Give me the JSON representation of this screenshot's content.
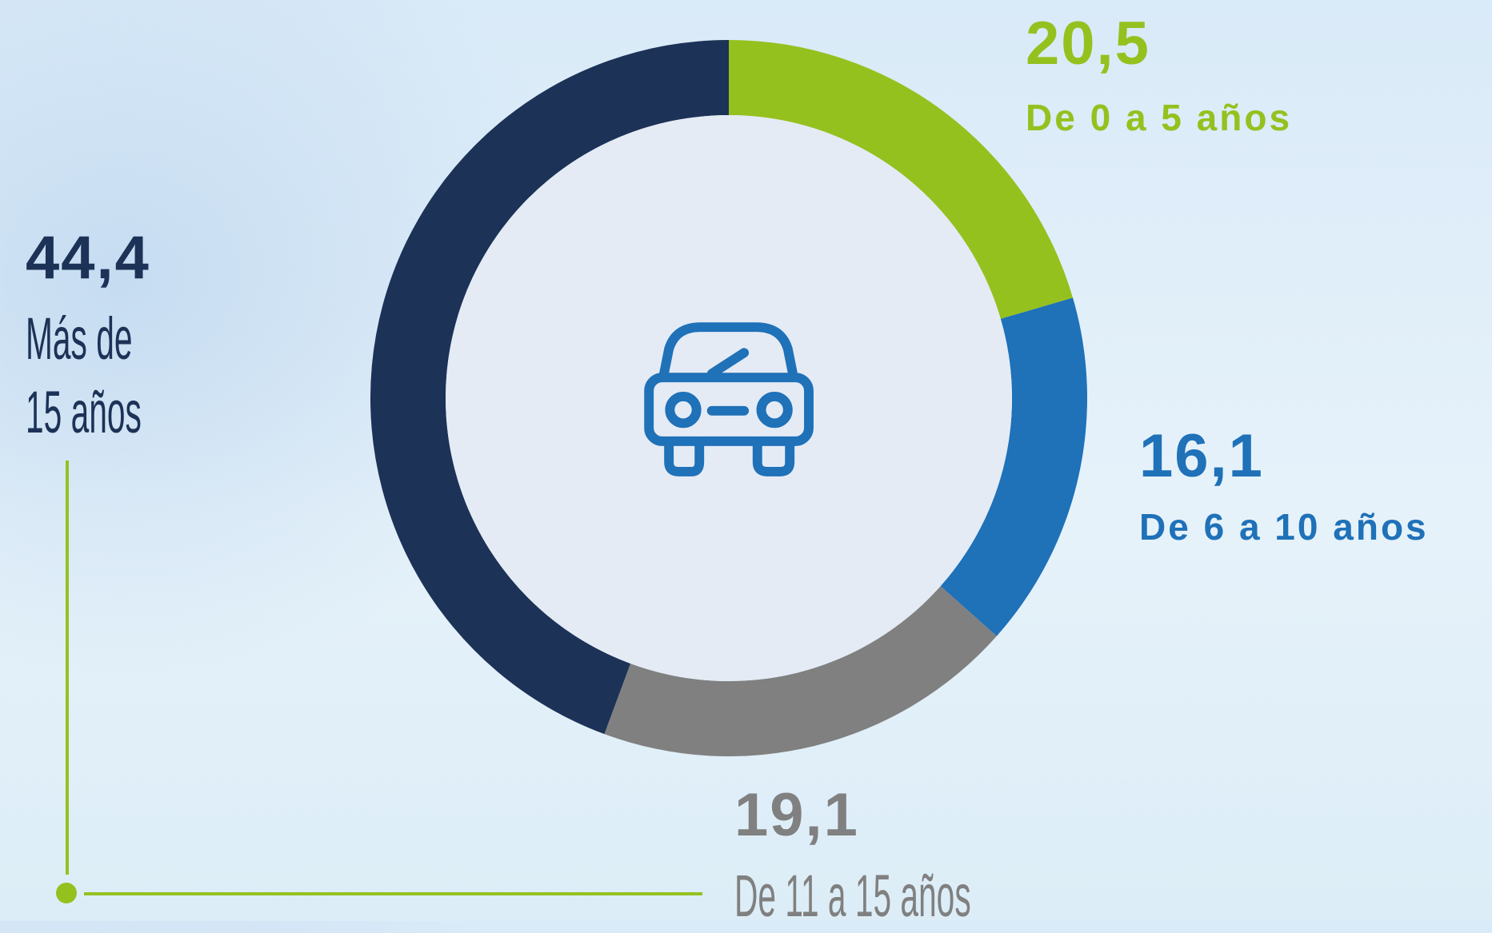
{
  "chart_data": {
    "type": "pie",
    "categories": [
      "De 0 a 5 años",
      "De 6 a 10 años",
      "De 11 a 15 años",
      "Más de 15 años"
    ],
    "values": [
      20.5,
      16.1,
      19.1,
      44.4
    ],
    "value_labels": [
      "20,5",
      "16,1",
      "19,1",
      "44,4"
    ],
    "colors": [
      "#95c11f",
      "#1f71b8",
      "#808080",
      "#1c3257"
    ]
  }
}
